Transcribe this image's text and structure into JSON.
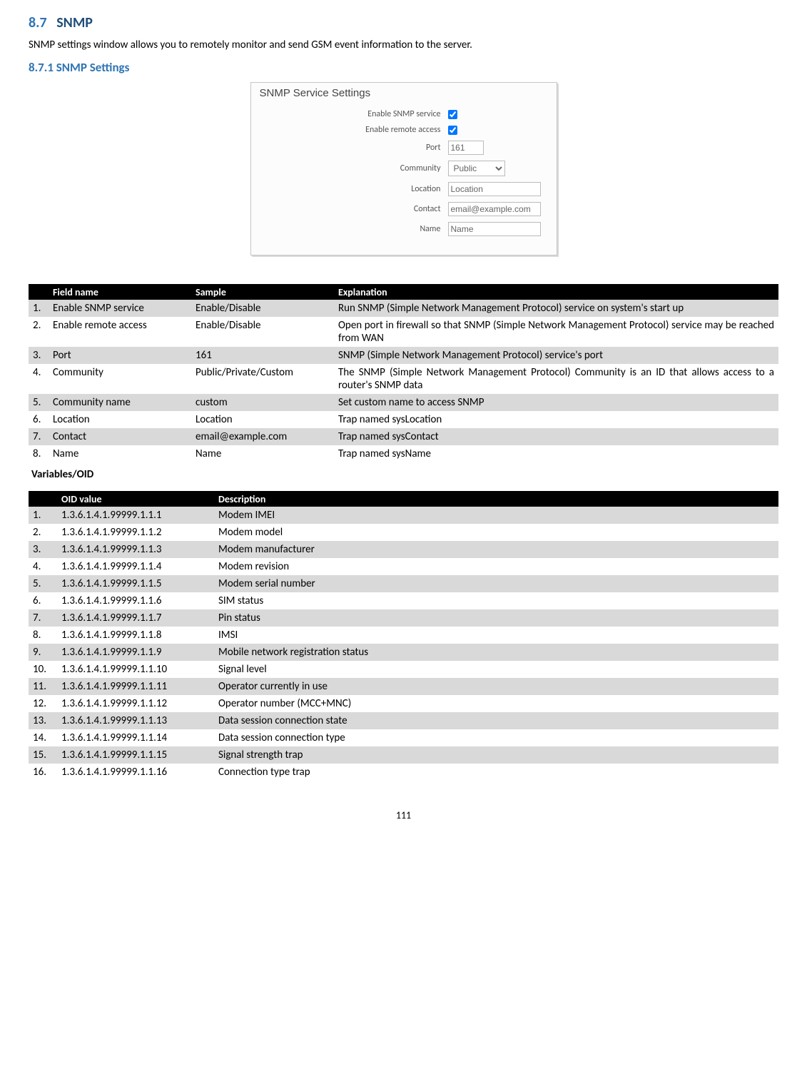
{
  "heading2_num": "8.7",
  "heading2_text": "SNMP",
  "intro": "SNMP settings window allows you to remotely monitor and send GSM event information to the server.",
  "heading3": "8.7.1  SNMP Settings",
  "panel": {
    "title": "SNMP Service Settings",
    "rows": [
      {
        "label": "Enable SNMP service",
        "kind": "checkbox",
        "checked": true
      },
      {
        "label": "Enable remote access",
        "kind": "checkbox",
        "checked": true
      },
      {
        "label": "Port",
        "kind": "text",
        "value": "161",
        "small": true
      },
      {
        "label": "Community",
        "kind": "select",
        "value": "Public"
      },
      {
        "label": "Location",
        "kind": "text",
        "value": "Location"
      },
      {
        "label": "Contact",
        "kind": "text",
        "value": "email@example.com"
      },
      {
        "label": "Name",
        "kind": "text",
        "value": "Name"
      }
    ]
  },
  "table1": {
    "columns": [
      "",
      "Field name",
      "Sample",
      "Explanation"
    ],
    "rows": [
      [
        "1.",
        "Enable SNMP service",
        "Enable/Disable",
        "Run SNMP (Simple Network Management Protocol) service on system's start up"
      ],
      [
        "2.",
        "Enable remote access",
        "Enable/Disable",
        "Open port in firewall so that SNMP (Simple Network Management Protocol) service may be reached from WAN"
      ],
      [
        "3.",
        "Port",
        "161",
        "SNMP (Simple Network Management Protocol) service's port"
      ],
      [
        "4.",
        "Community",
        "Public/Private/Custom",
        "The SNMP (Simple Network Management Protocol) Community is an ID that allows access to a router's SNMP data"
      ],
      [
        "5.",
        "Community name",
        "custom",
        "Set custom name to access SNMP"
      ],
      [
        "6.",
        "Location",
        "Location",
        "Trap named sysLocation"
      ],
      [
        "7.",
        "Contact",
        "email@example.com",
        "Trap named sysContact"
      ],
      [
        "8.",
        "Name",
        "Name",
        "Trap named sysName"
      ]
    ]
  },
  "subhead": "Variables/OID",
  "table2": {
    "columns": [
      "",
      "OID value",
      "Description"
    ],
    "rows": [
      [
        "1.",
        "1.3.6.1.4.1.99999.1.1.1",
        "Modem IMEI"
      ],
      [
        "2.",
        "1.3.6.1.4.1.99999.1.1.2",
        "Modem model"
      ],
      [
        "3.",
        "1.3.6.1.4.1.99999.1.1.3",
        "Modem manufacturer"
      ],
      [
        "4.",
        "1.3.6.1.4.1.99999.1.1.4",
        "Modem revision"
      ],
      [
        "5.",
        "1.3.6.1.4.1.99999.1.1.5",
        "Modem serial number"
      ],
      [
        "6.",
        "1.3.6.1.4.1.99999.1.1.6",
        "SIM status"
      ],
      [
        "7.",
        "1.3.6.1.4.1.99999.1.1.7",
        "Pin status"
      ],
      [
        "8.",
        "1.3.6.1.4.1.99999.1.1.8",
        "IMSI"
      ],
      [
        "9.",
        "1.3.6.1.4.1.99999.1.1.9",
        "Mobile network registration status"
      ],
      [
        "10.",
        "1.3.6.1.4.1.99999.1.1.10",
        "Signal level"
      ],
      [
        "11.",
        "1.3.6.1.4.1.99999.1.1.11",
        "Operator currently in use"
      ],
      [
        "12.",
        "1.3.6.1.4.1.99999.1.1.12",
        "Operator number (MCC+MNC)"
      ],
      [
        "13.",
        "1.3.6.1.4.1.99999.1.1.13",
        "Data session connection state"
      ],
      [
        "14.",
        "1.3.6.1.4.1.99999.1.1.14",
        "Data session connection type"
      ],
      [
        "15.",
        "1.3.6.1.4.1.99999.1.1.15",
        "Signal strength trap"
      ],
      [
        "16.",
        "1.3.6.1.4.1.99999.1.1.16",
        "Connection type trap"
      ]
    ]
  },
  "pagenum": "111"
}
